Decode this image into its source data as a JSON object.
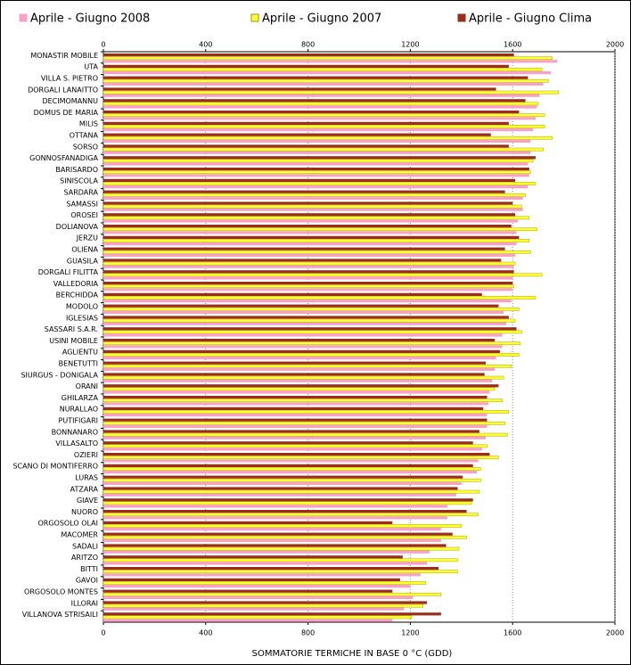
{
  "chart_data": {
    "type": "hbar",
    "x_label": "SOMMATORIE TERMICHE IN BASE 0 °C (GDD)",
    "categories": [
      "MONASTIR MOBILE",
      "UTA",
      "VILLA S. PIETRO",
      "DORGALI LANAITTO",
      "DECIMOMANNU",
      "DOMUS DE MARIA",
      "MILIS",
      "OTTANA",
      "SORSO",
      "GONNOSFANADIGA",
      "BARISARDO",
      "SINISCOLA",
      "SARDARA",
      "SAMASSI",
      "OROSEI",
      "DOLIANOVA",
      "JERZU",
      "OLIENA",
      "GUASILA",
      "DORGALI FILITTA",
      "VALLEDORIA",
      "BERCHIDDA",
      "MODOLO",
      "IGLESIAS",
      "SASSARI S.A.R.",
      "USINI MOBILE",
      "AGLIENTU",
      "BENETUTTI",
      "SIURGUS - DONIGALA",
      "ORANI",
      "GHILARZA",
      "NURALLAO",
      "PUTIFIGARI",
      "BONNANARO",
      "VILLASALTO",
      "OZIERI",
      "SCANO DI MONTIFERRO",
      "LURAS",
      "ATZARA",
      "GIAVE",
      "NUORO",
      "ORGOSOLO OLAI",
      "MACOMER",
      "SADALI",
      "ARITZO",
      "BITTI",
      "GAVOI",
      "ORGOSOLO MONTES",
      "ILLORAI",
      "VILLANOVA STRISAILI"
    ],
    "series": [
      {
        "name": "Aprile - Giugno 2008",
        "color": "#f9a0c8",
        "values": [
          1775,
          1750,
          1720,
          1705,
          1695,
          1690,
          1680,
          1670,
          1670,
          1660,
          1665,
          1660,
          1640,
          1640,
          1620,
          1615,
          1615,
          1610,
          1605,
          1600,
          1600,
          1595,
          1565,
          1575,
          1560,
          1560,
          1535,
          1530,
          1520,
          1510,
          1505,
          1500,
          1500,
          1495,
          1480,
          1465,
          1460,
          1400,
          1380,
          1345,
          1345,
          1320,
          1320,
          1275,
          1265,
          1240,
          1200,
          1210,
          1175,
          1130
        ]
      },
      {
        "name": "Aprile - Giugno 2007",
        "color": "#ffff33",
        "values": [
          1755,
          1715,
          1740,
          1780,
          1700,
          1725,
          1725,
          1755,
          1720,
          1680,
          1670,
          1690,
          1650,
          1635,
          1665,
          1695,
          1665,
          1670,
          1610,
          1715,
          1605,
          1690,
          1625,
          1610,
          1635,
          1630,
          1625,
          1595,
          1565,
          1530,
          1560,
          1585,
          1570,
          1580,
          1500,
          1545,
          1475,
          1475,
          1470,
          1440,
          1465,
          1400,
          1420,
          1390,
          1385,
          1385,
          1260,
          1320,
          1250,
          1205
        ]
      },
      {
        "name": "Aprile - Giugno Clima",
        "color": "#9b2d1a",
        "values": [
          1605,
          1585,
          1660,
          1535,
          1650,
          1625,
          1585,
          1515,
          1585,
          1690,
          1665,
          1610,
          1570,
          1600,
          1610,
          1595,
          1625,
          1570,
          1555,
          1605,
          1600,
          1480,
          1545,
          1585,
          1615,
          1530,
          1550,
          1495,
          1490,
          1545,
          1500,
          1485,
          1500,
          1470,
          1445,
          1510,
          1445,
          1405,
          1385,
          1445,
          1420,
          1130,
          1365,
          1340,
          1170,
          1310,
          1160,
          1130,
          1265,
          1320
        ]
      }
    ],
    "xlim": [
      0,
      2000
    ],
    "xticks": [
      0,
      400,
      800,
      1200,
      1600,
      2000
    ],
    "grid": true
  }
}
